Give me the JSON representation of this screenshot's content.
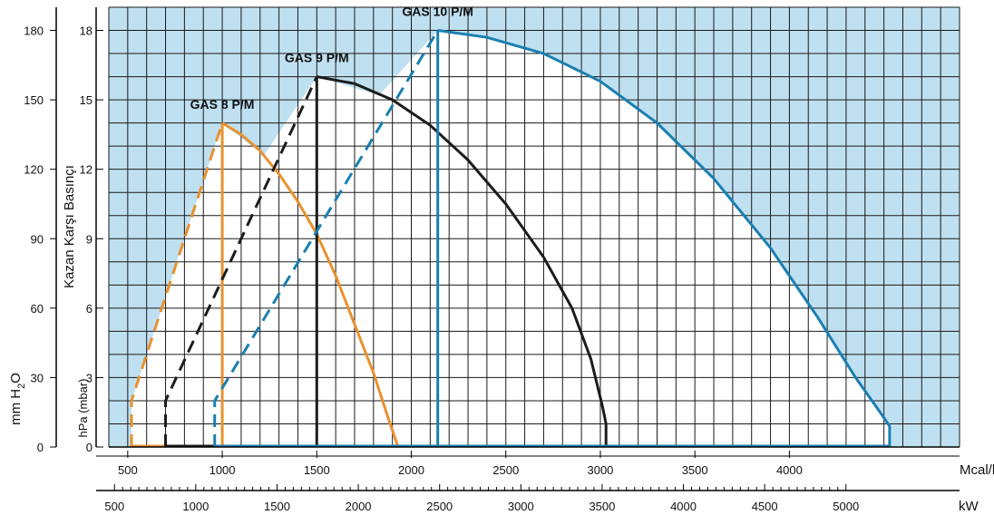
{
  "chart_data": {
    "type": "line",
    "title": "",
    "colors": {
      "background_fill": "#bfe0f0",
      "grid": "#1a1a1a",
      "gas8": "#e8912e",
      "gas9": "#1c1c1c",
      "gas10": "#1a7fb2"
    },
    "axes": {
      "x_mcal": {
        "unit": "Mcal/h",
        "range": [
          400,
          4900
        ],
        "ticks": [
          500,
          1000,
          1500,
          2000,
          2500,
          3000,
          3500,
          4000
        ],
        "tick_labels": [
          "500",
          "1000",
          "1500",
          "2000",
          "2500",
          "3000",
          "3500",
          "4000"
        ]
      },
      "x_kw": {
        "unit": "kW",
        "range": [
          465,
          5000
        ],
        "ticks": [
          500,
          1000,
          1500,
          2000,
          2500,
          3000,
          3500,
          4000,
          4500,
          5000
        ],
        "tick_labels": [
          "500",
          "1000",
          "1500",
          "2000",
          "2500",
          "3000",
          "3500",
          "4000",
          "4500",
          "5000"
        ]
      },
      "y_hpa": {
        "label": "hPa (mbar)",
        "range": [
          0,
          19
        ],
        "ticks": [
          0,
          3,
          6,
          9,
          12,
          15,
          18
        ],
        "tick_labels": [
          "0",
          "3",
          "6",
          "9",
          "12",
          "15",
          "18"
        ]
      },
      "y_mmh2o": {
        "label": "mm H2O",
        "range": [
          0,
          190
        ],
        "ticks": [
          0,
          30,
          60,
          90,
          120,
          150,
          180
        ],
        "tick_labels": [
          "0",
          "30",
          "60",
          "90",
          "120",
          "150",
          "180"
        ]
      },
      "y_title": "Kazan Karşı Basınçı"
    },
    "grid": true,
    "series": [
      {
        "name": "GAS 8 P/M",
        "color_key": "gas8",
        "dashed_start": [
          [
            520,
            0
          ],
          [
            520,
            2
          ],
          [
            1000,
            14
          ]
        ],
        "solid_curve": [
          [
            1000,
            14
          ],
          [
            1100,
            13.5
          ],
          [
            1200,
            12.8
          ],
          [
            1300,
            11.8
          ],
          [
            1400,
            10.6
          ],
          [
            1500,
            9.2
          ],
          [
            1600,
            7.4
          ],
          [
            1700,
            5.3
          ],
          [
            1800,
            3.2
          ],
          [
            1880,
            1.2
          ],
          [
            1930,
            0
          ]
        ],
        "vertical_at": 1000
      },
      {
        "name": "GAS 9 P/M",
        "color_key": "gas9",
        "dashed_start": [
          [
            700,
            0
          ],
          [
            700,
            2
          ],
          [
            1500,
            16
          ]
        ],
        "solid_curve": [
          [
            1500,
            16
          ],
          [
            1700,
            15.7
          ],
          [
            1900,
            15
          ],
          [
            2100,
            13.9
          ],
          [
            2300,
            12.4
          ],
          [
            2500,
            10.5
          ],
          [
            2700,
            8.2
          ],
          [
            2850,
            6.0
          ],
          [
            2950,
            3.8
          ],
          [
            3010,
            1.8
          ],
          [
            3030,
            1.0
          ],
          [
            3030,
            0
          ]
        ],
        "vertical_at": 1500
      },
      {
        "name": "GAS 10 P/M",
        "color_key": "gas10",
        "dashed_start": [
          [
            960,
            0
          ],
          [
            960,
            2
          ],
          [
            2140,
            18
          ]
        ],
        "solid_curve": [
          [
            2140,
            18
          ],
          [
            2400,
            17.7
          ],
          [
            2700,
            17
          ],
          [
            3000,
            15.8
          ],
          [
            3300,
            14
          ],
          [
            3600,
            11.6
          ],
          [
            3900,
            8.6
          ],
          [
            4150,
            5.6
          ],
          [
            4350,
            3.0
          ],
          [
            4480,
            1.5
          ],
          [
            4530,
            0.9
          ],
          [
            4530,
            0
          ]
        ],
        "vertical_at": 2140
      }
    ],
    "series_labels": [
      {
        "name": "GAS 8 P/M",
        "at": [
          1000,
          14.7
        ]
      },
      {
        "name": "GAS 9 P/M",
        "at": [
          1500,
          16.7
        ]
      },
      {
        "name": "GAS 10 P/M",
        "at": [
          2140,
          18.7
        ]
      }
    ]
  }
}
